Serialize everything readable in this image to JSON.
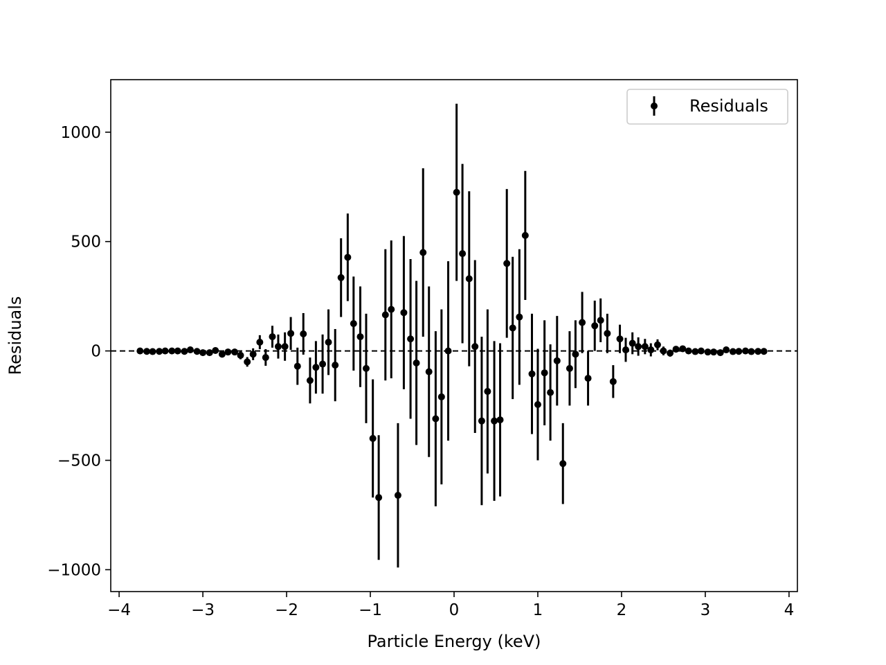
{
  "chart_data": {
    "type": "scatter",
    "title": "",
    "xlabel": "Particle Energy (keV)",
    "ylabel": "Residuals",
    "xlim": [
      -4.1,
      4.1
    ],
    "ylim": [
      -1100,
      1240
    ],
    "xticks": [
      -4,
      -3,
      -2,
      -1,
      0,
      1,
      2,
      3,
      4
    ],
    "yticks": [
      -1000,
      -500,
      0,
      500,
      1000
    ],
    "xtick_labels": [
      "−4",
      "−3",
      "−2",
      "−1",
      "0",
      "1",
      "2",
      "3",
      "4"
    ],
    "ytick_labels": [
      "−1000",
      "−500",
      "0",
      "500",
      "1000"
    ],
    "grid": false,
    "legend": {
      "position": "top-right",
      "entries": [
        "Residuals"
      ]
    },
    "reference_line": {
      "y": 0,
      "style": "dashed",
      "color": "#000000"
    },
    "marker_color": "#000000",
    "series": [
      {
        "name": "Residuals",
        "points": [
          {
            "x": -3.75,
            "y": 0,
            "err": 5
          },
          {
            "x": -3.67,
            "y": -2,
            "err": 5
          },
          {
            "x": -3.6,
            "y": -3,
            "err": 5
          },
          {
            "x": -3.52,
            "y": -2,
            "err": 5
          },
          {
            "x": -3.45,
            "y": 0,
            "err": 5
          },
          {
            "x": -3.37,
            "y": 0,
            "err": 5
          },
          {
            "x": -3.3,
            "y": 0,
            "err": 6
          },
          {
            "x": -3.22,
            "y": -2,
            "err": 6
          },
          {
            "x": -3.15,
            "y": 5,
            "err": 7
          },
          {
            "x": -3.07,
            "y": -2,
            "err": 7
          },
          {
            "x": -3.0,
            "y": -8,
            "err": 8
          },
          {
            "x": -2.92,
            "y": -8,
            "err": 9
          },
          {
            "x": -2.85,
            "y": 2,
            "err": 10
          },
          {
            "x": -2.77,
            "y": -15,
            "err": 12
          },
          {
            "x": -2.7,
            "y": -5,
            "err": 13
          },
          {
            "x": -2.62,
            "y": -5,
            "err": 15
          },
          {
            "x": -2.55,
            "y": -20,
            "err": 18
          },
          {
            "x": -2.47,
            "y": -50,
            "err": 22
          },
          {
            "x": -2.4,
            "y": -15,
            "err": 27
          },
          {
            "x": -2.32,
            "y": 40,
            "err": 32
          },
          {
            "x": -2.25,
            "y": -30,
            "err": 38
          },
          {
            "x": -2.17,
            "y": 65,
            "err": 50
          },
          {
            "x": -2.1,
            "y": 20,
            "err": 55
          },
          {
            "x": -2.02,
            "y": 20,
            "err": 65
          },
          {
            "x": -1.95,
            "y": 80,
            "err": 75
          },
          {
            "x": -1.87,
            "y": -70,
            "err": 85
          },
          {
            "x": -1.8,
            "y": 78,
            "err": 95
          },
          {
            "x": -1.72,
            "y": -135,
            "err": 105
          },
          {
            "x": -1.65,
            "y": -75,
            "err": 120
          },
          {
            "x": -1.57,
            "y": -60,
            "err": 135
          },
          {
            "x": -1.5,
            "y": 40,
            "err": 150
          },
          {
            "x": -1.42,
            "y": -65,
            "err": 165
          },
          {
            "x": -1.35,
            "y": 335,
            "err": 180
          },
          {
            "x": -1.27,
            "y": 428,
            "err": 200
          },
          {
            "x": -1.2,
            "y": 125,
            "err": 215
          },
          {
            "x": -1.12,
            "y": 65,
            "err": 230
          },
          {
            "x": -1.05,
            "y": -80,
            "err": 250
          },
          {
            "x": -0.97,
            "y": -400,
            "err": 270
          },
          {
            "x": -0.9,
            "y": -670,
            "err": 285
          },
          {
            "x": -0.82,
            "y": 165,
            "err": 300
          },
          {
            "x": -0.75,
            "y": 190,
            "err": 315
          },
          {
            "x": -0.67,
            "y": -660,
            "err": 330
          },
          {
            "x": -0.6,
            "y": 175,
            "err": 350
          },
          {
            "x": -0.52,
            "y": 55,
            "err": 365
          },
          {
            "x": -0.45,
            "y": -55,
            "err": 375
          },
          {
            "x": -0.37,
            "y": 450,
            "err": 385
          },
          {
            "x": -0.3,
            "y": -95,
            "err": 390
          },
          {
            "x": -0.22,
            "y": -310,
            "err": 400
          },
          {
            "x": -0.15,
            "y": -210,
            "err": 400
          },
          {
            "x": -0.07,
            "y": 0,
            "err": 410
          },
          {
            "x": 0.03,
            "y": 725,
            "err": 405
          },
          {
            "x": 0.1,
            "y": 445,
            "err": 410
          },
          {
            "x": 0.18,
            "y": 330,
            "err": 400
          },
          {
            "x": 0.25,
            "y": 20,
            "err": 395
          },
          {
            "x": 0.33,
            "y": -320,
            "err": 385
          },
          {
            "x": 0.4,
            "y": -185,
            "err": 375
          },
          {
            "x": 0.48,
            "y": -320,
            "err": 365
          },
          {
            "x": 0.55,
            "y": -315,
            "err": 350
          },
          {
            "x": 0.63,
            "y": 400,
            "err": 340
          },
          {
            "x": 0.7,
            "y": 105,
            "err": 325
          },
          {
            "x": 0.78,
            "y": 155,
            "err": 310
          },
          {
            "x": 0.85,
            "y": 528,
            "err": 295
          },
          {
            "x": 0.93,
            "y": -105,
            "err": 275
          },
          {
            "x": 1.0,
            "y": -245,
            "err": 255
          },
          {
            "x": 1.08,
            "y": -100,
            "err": 240
          },
          {
            "x": 1.15,
            "y": -190,
            "err": 220
          },
          {
            "x": 1.23,
            "y": -45,
            "err": 205
          },
          {
            "x": 1.3,
            "y": -515,
            "err": 185
          },
          {
            "x": 1.38,
            "y": -80,
            "err": 170
          },
          {
            "x": 1.45,
            "y": -15,
            "err": 155
          },
          {
            "x": 1.53,
            "y": 130,
            "err": 140
          },
          {
            "x": 1.6,
            "y": -125,
            "err": 125
          },
          {
            "x": 1.68,
            "y": 115,
            "err": 115
          },
          {
            "x": 1.75,
            "y": 140,
            "err": 100
          },
          {
            "x": 1.83,
            "y": 80,
            "err": 90
          },
          {
            "x": 1.9,
            "y": -140,
            "err": 75
          },
          {
            "x": 1.98,
            "y": 55,
            "err": 65
          },
          {
            "x": 2.05,
            "y": 5,
            "err": 55
          },
          {
            "x": 2.13,
            "y": 35,
            "err": 50
          },
          {
            "x": 2.2,
            "y": 20,
            "err": 42
          },
          {
            "x": 2.28,
            "y": 20,
            "err": 35
          },
          {
            "x": 2.35,
            "y": 5,
            "err": 30
          },
          {
            "x": 2.43,
            "y": 28,
            "err": 25
          },
          {
            "x": 2.5,
            "y": 0,
            "err": 20
          },
          {
            "x": 2.58,
            "y": -10,
            "err": 16
          },
          {
            "x": 2.65,
            "y": 8,
            "err": 13
          },
          {
            "x": 2.73,
            "y": 10,
            "err": 11
          },
          {
            "x": 2.8,
            "y": 0,
            "err": 10
          },
          {
            "x": 2.88,
            "y": -3,
            "err": 9
          },
          {
            "x": 2.95,
            "y": 0,
            "err": 8
          },
          {
            "x": 3.03,
            "y": -5,
            "err": 7
          },
          {
            "x": 3.1,
            "y": -5,
            "err": 7
          },
          {
            "x": 3.18,
            "y": -8,
            "err": 6
          },
          {
            "x": 3.25,
            "y": 5,
            "err": 6
          },
          {
            "x": 3.33,
            "y": -3,
            "err": 5
          },
          {
            "x": 3.4,
            "y": -2,
            "err": 5
          },
          {
            "x": 3.48,
            "y": 0,
            "err": 5
          },
          {
            "x": 3.55,
            "y": -3,
            "err": 5
          },
          {
            "x": 3.63,
            "y": -2,
            "err": 5
          },
          {
            "x": 3.7,
            "y": -2,
            "err": 5
          }
        ]
      }
    ]
  }
}
